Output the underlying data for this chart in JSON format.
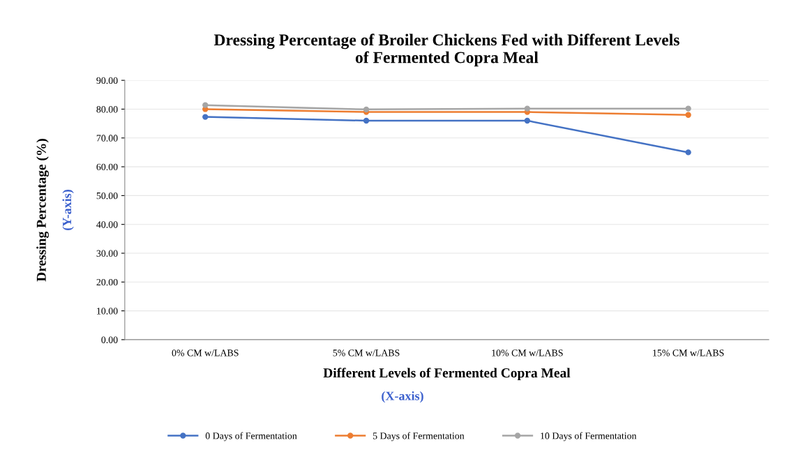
{
  "chart_data": {
    "type": "line",
    "title": "Dressing Percentage of Broiler Chickens Fed with Different Levels\nof Fermented Copra Meal",
    "xlabel": "Different Levels of Fermented Copra Meal",
    "ylabel": "Dressing Percentage (%)",
    "annotations": [
      "(Y-axis)",
      "(X-axis)"
    ],
    "categories": [
      "0% CM w/LABS",
      "5% CM w/LABS",
      "10% CM w/LABS",
      "15% CM w/LABS"
    ],
    "series": [
      {
        "name": "0 Days of Fermentation",
        "color": "#4472c4",
        "values": [
          77.3,
          76.0,
          76.0,
          65.0
        ]
      },
      {
        "name": "5 Days of Fermentation",
        "color": "#ed7d31",
        "values": [
          80.0,
          79.0,
          79.0,
          78.0
        ]
      },
      {
        "name": "10 Days of Fermentation",
        "color": "#a5a5a5",
        "values": [
          81.4,
          79.9,
          80.2,
          80.2
        ]
      }
    ],
    "ylim": [
      0,
      90
    ],
    "yticks": [
      {
        "value": 0,
        "label": "0.00"
      },
      {
        "value": 10,
        "label": "10.00"
      },
      {
        "value": 20,
        "label": "20.00"
      },
      {
        "value": 30,
        "label": "30.00"
      },
      {
        "value": 40,
        "label": "40.00"
      },
      {
        "value": 50,
        "label": "50.00"
      },
      {
        "value": 60,
        "label": "60.00"
      },
      {
        "value": 70,
        "label": "70.00"
      },
      {
        "value": 80,
        "label": "80.00"
      },
      {
        "value": 90,
        "label": "90.00"
      }
    ],
    "grid": "y",
    "legend": "bottom",
    "marker": "circle",
    "line_style": "solid"
  }
}
